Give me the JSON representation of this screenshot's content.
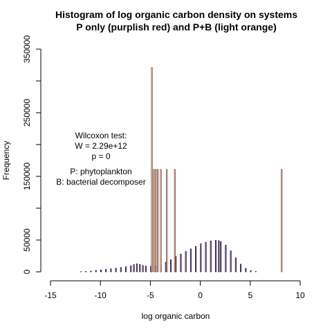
{
  "chart_data": {
    "type": "bar",
    "title_line1": "Histogram of log organic carbon density on systems",
    "title_line2": "P only (purplish red) and P+B (light orange)",
    "xlabel": "log organic carbon",
    "ylabel": "Frequency",
    "xlim": [
      -15,
      10
    ],
    "ylim": [
      0,
      350000
    ],
    "x_ticks": [
      -15,
      -10,
      -5,
      0,
      5,
      10
    ],
    "x_tick_labels": [
      "-15",
      "-10",
      "-5",
      "0",
      "5",
      "10"
    ],
    "y_ticks": [
      0,
      50000,
      150000,
      250000,
      350000
    ],
    "y_tick_labels": [
      "0",
      "50000",
      "150000",
      "250000",
      "350000"
    ],
    "colors": {
      "p_fill": "#9b6bd8",
      "pb_fill": "#f2c8b8",
      "bar_stroke": "#000000",
      "pb_stroke": "#5a2a1a"
    },
    "annotation_lines": [
      "Wilcoxon test:",
      "W = 2.29e+12",
      "p = 0",
      "",
      "P: phytoplankton",
      "B: bacterial decomposer"
    ],
    "series": [
      {
        "fill_key": "p_fill",
        "bin_width": 0.1,
        "values": [
          {
            "x": -12.0,
            "y": 300
          },
          {
            "x": -11.5,
            "y": 700
          },
          {
            "x": -11.0,
            "y": 1300
          },
          {
            "x": -10.5,
            "y": 2200
          },
          {
            "x": -10.0,
            "y": 3000
          },
          {
            "x": -9.5,
            "y": 3800
          },
          {
            "x": -9.0,
            "y": 4800
          },
          {
            "x": -8.5,
            "y": 5800
          },
          {
            "x": -8.0,
            "y": 6900
          },
          {
            "x": -7.5,
            "y": 8000
          },
          {
            "x": -7.0,
            "y": 9500
          },
          {
            "x": -6.7,
            "y": 11500
          },
          {
            "x": -6.4,
            "y": 12500
          },
          {
            "x": -6.1,
            "y": 11500
          },
          {
            "x": -5.8,
            "y": 10000
          },
          {
            "x": -5.5,
            "y": 9000
          },
          {
            "x": -5.0,
            "y": 8500
          },
          {
            "x": -4.5,
            "y": 9500
          },
          {
            "x": -4.0,
            "y": 11500
          },
          {
            "x": -3.5,
            "y": 15000
          },
          {
            "x": -3.0,
            "y": 19000
          },
          {
            "x": -2.5,
            "y": 24000
          },
          {
            "x": -2.0,
            "y": 28000
          },
          {
            "x": -1.5,
            "y": 32000
          },
          {
            "x": -1.0,
            "y": 36000
          },
          {
            "x": -0.5,
            "y": 40000
          },
          {
            "x": 0.0,
            "y": 44000
          },
          {
            "x": 0.5,
            "y": 46500
          },
          {
            "x": 1.0,
            "y": 48500
          },
          {
            "x": 1.5,
            "y": 49500
          },
          {
            "x": 1.8,
            "y": 49000
          },
          {
            "x": 2.0,
            "y": 47500
          },
          {
            "x": 2.5,
            "y": 42000
          },
          {
            "x": 3.0,
            "y": 33000
          },
          {
            "x": 3.5,
            "y": 22000
          },
          {
            "x": 4.0,
            "y": 12000
          },
          {
            "x": 4.5,
            "y": 5500
          },
          {
            "x": 5.0,
            "y": 2000
          },
          {
            "x": 5.5,
            "y": 500
          }
        ]
      },
      {
        "fill_key": "pb_fill",
        "bin_width": 0.1,
        "values": [
          {
            "x": -4.9,
            "y": 321000
          },
          {
            "x": -4.7,
            "y": 161000
          },
          {
            "x": -4.5,
            "y": 161000
          },
          {
            "x": -4.3,
            "y": 161000
          },
          {
            "x": -4.0,
            "y": 161000
          },
          {
            "x": -3.4,
            "y": 161000
          },
          {
            "x": -2.6,
            "y": 161000
          },
          {
            "x": 8.1,
            "y": 161000
          }
        ]
      }
    ]
  }
}
